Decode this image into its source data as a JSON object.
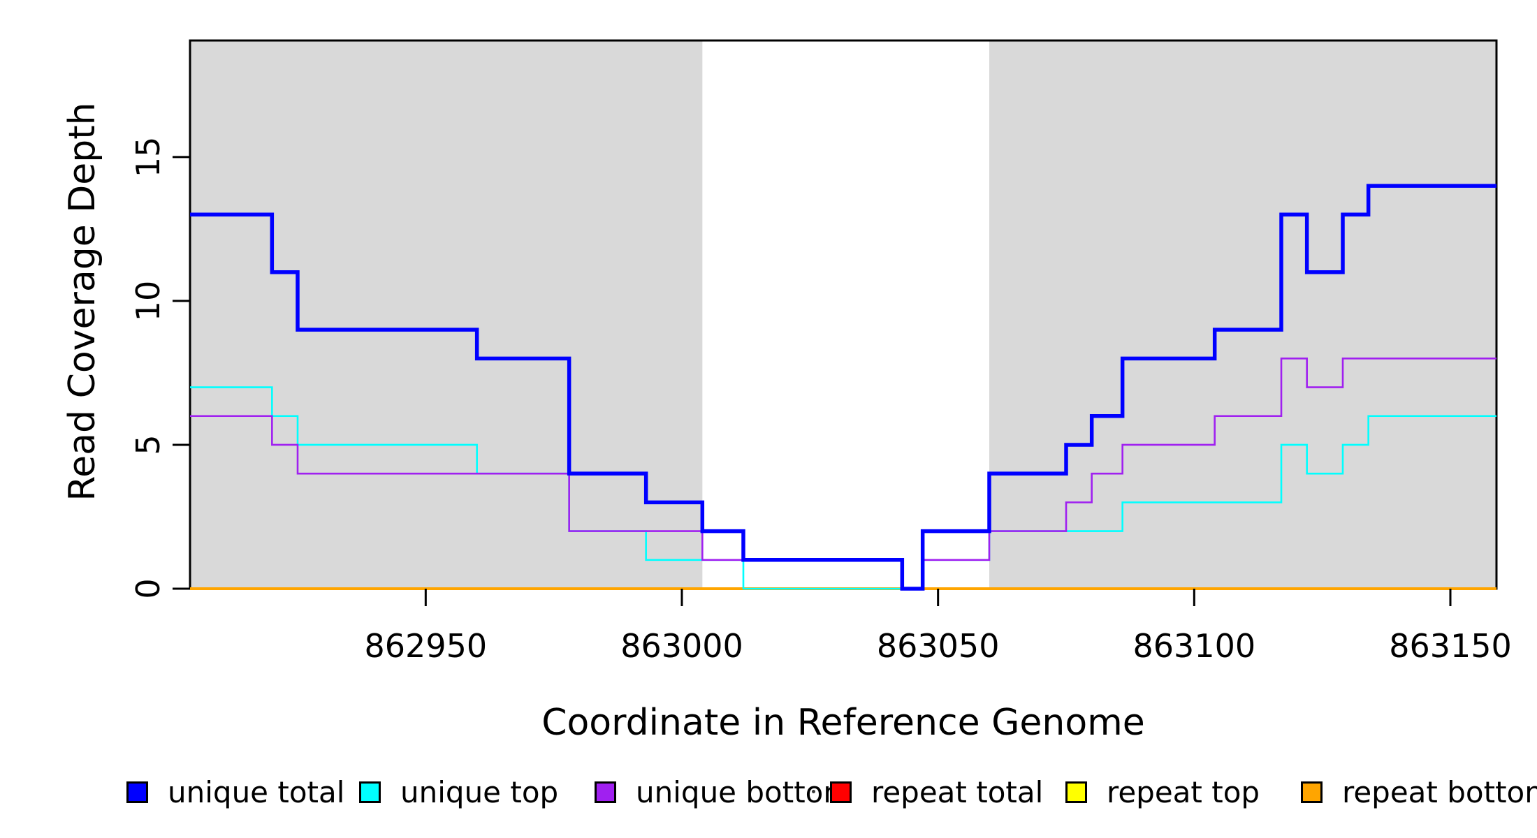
{
  "chart_data": {
    "type": "line",
    "style": "step",
    "title": "",
    "xlabel": "Coordinate in Reference Genome",
    "ylabel": "Read Coverage Depth",
    "xlim": [
      862904,
      863159
    ],
    "ylim": [
      0,
      19.05
    ],
    "x_ticks": [
      862950,
      863000,
      863050,
      863100,
      863150
    ],
    "y_ticks": [
      0,
      5,
      10,
      15
    ],
    "grid": false,
    "legend_position": "bottom",
    "plot_background": "#ffffff",
    "shaded_regions": [
      {
        "x0": 862904,
        "x1": 863004,
        "color": "#d9d9d9"
      },
      {
        "x0": 863060,
        "x1": 863159,
        "color": "#d9d9d9"
      }
    ],
    "series": [
      {
        "name": "repeat total",
        "color": "#ff0000",
        "width": 3,
        "steps": [
          [
            862904,
            0
          ]
        ]
      },
      {
        "name": "repeat top",
        "color": "#ffff00",
        "width": 3,
        "steps": [
          [
            862904,
            0
          ]
        ]
      },
      {
        "name": "repeat bottom",
        "color": "#ffa500",
        "width": 4,
        "steps": [
          [
            862904,
            0
          ]
        ]
      },
      {
        "name": "unique top",
        "color": "#00ffff",
        "width": 2.6,
        "steps": [
          [
            862904,
            7
          ],
          [
            862920,
            6
          ],
          [
            862925,
            5
          ],
          [
            862960,
            4
          ],
          [
            862978,
            2
          ],
          [
            862993,
            1
          ],
          [
            863012,
            0
          ],
          [
            863047,
            1
          ],
          [
            863060,
            2
          ],
          [
            863086,
            3
          ],
          [
            863117,
            5
          ],
          [
            863122,
            4
          ],
          [
            863129,
            5
          ],
          [
            863134,
            6
          ]
        ]
      },
      {
        "name": "unique bottom",
        "color": "#a020f0",
        "width": 2.6,
        "steps": [
          [
            862904,
            6
          ],
          [
            862920,
            5
          ],
          [
            862925,
            4
          ],
          [
            862978,
            2
          ],
          [
            863004,
            1
          ],
          [
            863043,
            0
          ],
          [
            863047,
            1
          ],
          [
            863060,
            2
          ],
          [
            863075,
            3
          ],
          [
            863080,
            4
          ],
          [
            863086,
            5
          ],
          [
            863104,
            6
          ],
          [
            863117,
            8
          ],
          [
            863122,
            7
          ],
          [
            863129,
            8
          ]
        ]
      },
      {
        "name": "unique total",
        "color": "#0000ff",
        "width": 5.5,
        "steps": [
          [
            862904,
            13
          ],
          [
            862920,
            11
          ],
          [
            862925,
            9
          ],
          [
            862960,
            8
          ],
          [
            862978,
            4
          ],
          [
            862993,
            3
          ],
          [
            863004,
            2
          ],
          [
            863012,
            1
          ],
          [
            863043,
            0
          ],
          [
            863047,
            2
          ],
          [
            863060,
            4
          ],
          [
            863075,
            5
          ],
          [
            863080,
            6
          ],
          [
            863086,
            8
          ],
          [
            863104,
            9
          ],
          [
            863117,
            13
          ],
          [
            863122,
            11
          ],
          [
            863129,
            13
          ],
          [
            863134,
            14
          ]
        ]
      }
    ],
    "legend": {
      "items": [
        {
          "label": "unique total",
          "color": "#0000ff"
        },
        {
          "label": "unique top",
          "color": "#00ffff"
        },
        {
          "label": "unique bottom",
          "color": "#a020f0"
        },
        {
          "label": "repeat total",
          "color": "#ff0000"
        },
        {
          "label": "repeat top",
          "color": "#ffff00"
        },
        {
          "label": "repeat bottom",
          "color": "#ffa500"
        }
      ]
    }
  }
}
